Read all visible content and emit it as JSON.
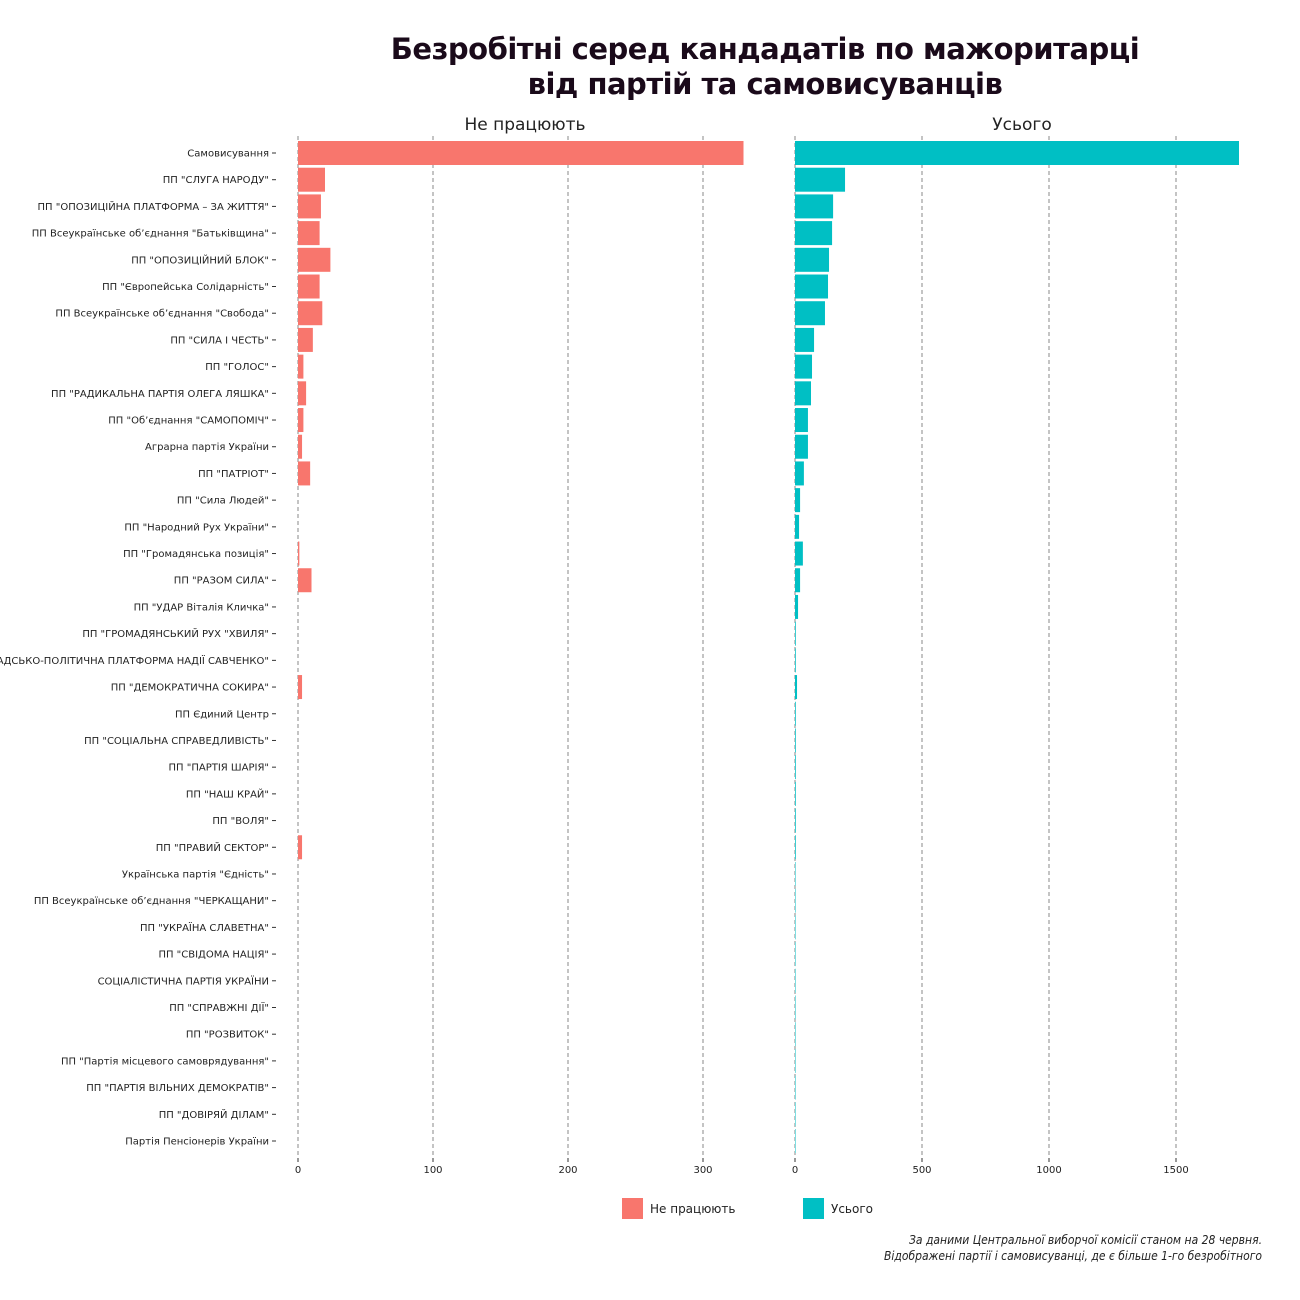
{
  "title_line1": "Безробітні серед кандадатів по мажоритарці",
  "title_line2": "від партій та самовисуванців",
  "caption_line1": "За даними Центральної виборчої комісії станом на 28 червня.",
  "caption_line2": "Відображені партії і самовисуванці, де є більше 1-го безробітного",
  "chart_data": [
    {
      "type": "bar",
      "orientation": "horizontal",
      "title": "Не працюють",
      "color": "#F8766D",
      "xlim": [
        0,
        340
      ],
      "xticks": [
        0,
        100,
        200,
        300
      ],
      "grid": "vertical dashed",
      "series_key": "unemployed"
    },
    {
      "type": "bar",
      "orientation": "horizontal",
      "title": "Усього",
      "color": "#00BFC4",
      "xlim": [
        0,
        1800
      ],
      "xticks": [
        0,
        500,
        1000,
        1500
      ],
      "grid": "vertical dashed",
      "series_key": "total"
    }
  ],
  "categories": [
    "Самовисування",
    "ПП \"СЛУГА НАРОДУ\"",
    "ПП \"ОПОЗИЦІЙНА ПЛАТФОРМА – ЗА ЖИТТЯ\"",
    "ПП Всеукраїнське об’єднання \"Батьківщина\"",
    "ПП \"ОПОЗИЦІЙНИЙ БЛОК\"",
    "ПП \"Європейська Солідарність\"",
    "ПП Всеукраїнське об’єднання \"Свобода\"",
    "ПП \"СИЛА І ЧЕСТЬ\"",
    "ПП \"ГОЛОС\"",
    "ПП \"РАДИКАЛЬНА ПАРТІЯ ОЛЕГА ЛЯШКА\"",
    "ПП \"Об’єднання \"САМОПОМІЧ\"",
    "Аграрна партія України",
    "ПП \"ПАТРІОТ\"",
    "ПП \"Сила Людей\"",
    "ПП \"Народний Рух України\"",
    "ПП \"Громадянська позиція\"",
    "ПП \"РАЗОМ СИЛА\"",
    "ПП \"УДАР Віталія Кличка\"",
    "ПП \"ГРОМАДЯНСЬКИЙ РУХ \"ХВИЛЯ\"",
    "ПП \"ГРОМАДСЬКО-ПОЛІТИЧНА ПЛАТФОРМА НАДІЇ САВЧЕНКО\"",
    "ПП \"ДЕМОКРАТИЧНА СОКИРА\"",
    "ПП Єдиний Центр",
    "ПП \"СОЦІАЛЬНА СПРАВЕДЛИВІСТЬ\"",
    "ПП \"ПАРТІЯ ШАРІЯ\"",
    "ПП \"НАШ КРАЙ\"",
    "ПП \"ВОЛЯ\"",
    "ПП \"ПРАВИЙ СЕКТОР\"",
    "Українська партія \"Єдність\"",
    "ПП Всеукраїнське об’єднання \"ЧЕРКАЩАНИ\"",
    "ПП \"УКРАЇНА СЛАВЕТНА\"",
    "ПП \"СВІДОМА НАЦІЯ\"",
    "СОЦІАЛІСТИЧНА ПАРТІЯ УКРАЇНИ",
    "ПП \"СПРАВЖНІ ДІЇ\"",
    "ПП \"РОЗВИТОК\"",
    "ПП \"Партія місцевого самоврядування\"",
    "ПП \"ПАРТІЯ ВІЛЬНИХ ДЕМОКРАТІВ\"",
    "ПП \"ДОВІРЯЙ ДІЛАМ\"",
    "Партія Пенсіонерів України"
  ],
  "unemployed": [
    330,
    20,
    17,
    16,
    24,
    16,
    18,
    11,
    4,
    6,
    4,
    3,
    9,
    0,
    0,
    1,
    10,
    0,
    0,
    0,
    3,
    0,
    0,
    0,
    0,
    0,
    3,
    0,
    0,
    0,
    0,
    0,
    0,
    0,
    0,
    0,
    0,
    0
  ],
  "total": [
    1748,
    197,
    150,
    146,
    134,
    130,
    118,
    75,
    67,
    63,
    51,
    51,
    35,
    20,
    16,
    31,
    20,
    12,
    3,
    3,
    8,
    3,
    3,
    3,
    3,
    3,
    3,
    2,
    2,
    2,
    2,
    2,
    2,
    2,
    2,
    2,
    2,
    2
  ],
  "legend": [
    {
      "label": "Не працюють",
      "color": "#F8766D"
    },
    {
      "label": "Усього",
      "color": "#00BFC4"
    }
  ]
}
